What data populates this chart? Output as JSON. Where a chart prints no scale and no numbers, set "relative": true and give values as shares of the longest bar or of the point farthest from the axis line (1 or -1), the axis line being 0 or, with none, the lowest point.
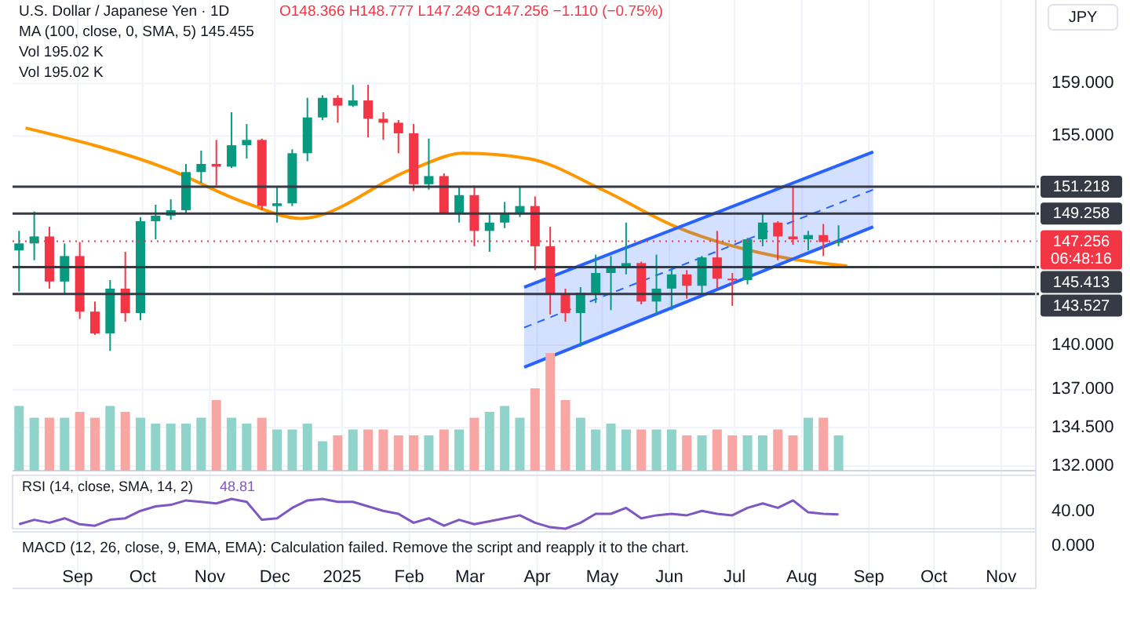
{
  "chart_data": [
    {
      "type": "candlestick",
      "title": "U.S. Dollar / Japanese Yen · 1D",
      "subtitle": "O148.366 H148.777 L147.249 C147.256 −1.110 (−0.75%)",
      "ylabel": "JPY",
      "annotations": [
        "MA (100, close, 0, SMA, 5) 145.455",
        "Vol 195.02 K",
        "Vol 195.02 K"
      ],
      "log": true,
      "grid": true,
      "xlim": [
        "2024-08-02",
        "2025-11-17"
      ],
      "ylim": [
        131.7,
        165.6
      ],
      "xticks": [
        {
          "value": "2024-09-01",
          "label": "Sep"
        },
        {
          "value": "2024-10-01",
          "label": "Oct"
        },
        {
          "value": "2024-11-01",
          "label": "Nov"
        },
        {
          "value": "2024-12-01",
          "label": "Dec"
        },
        {
          "value": "2025-01-01",
          "label": "2025"
        },
        {
          "value": "2025-02-01",
          "label": "Feb"
        },
        {
          "value": "2025-03-01",
          "label": "Mar"
        },
        {
          "value": "2025-04-01",
          "label": "Apr"
        },
        {
          "value": "2025-05-01",
          "label": "May"
        },
        {
          "value": "2025-06-01",
          "label": "Jun"
        },
        {
          "value": "2025-07-01",
          "label": "Jul"
        },
        {
          "value": "2025-08-01",
          "label": "Aug"
        },
        {
          "value": "2025-09-01",
          "label": "Sep"
        },
        {
          "value": "2025-10-01",
          "label": "Oct"
        },
        {
          "value": "2025-11-01",
          "label": "Nov"
        }
      ],
      "yticks": [
        {
          "value": 159,
          "label": "159.000"
        },
        {
          "value": 155,
          "label": "155.000"
        },
        {
          "value": 140,
          "label": "140.000"
        },
        {
          "value": 137,
          "label": "137.000"
        },
        {
          "value": 134.5,
          "label": "134.500"
        },
        {
          "value": 132,
          "label": "132.000"
        }
      ],
      "x": [
        "2024-08-05",
        "2024-08-12",
        "2024-08-19",
        "2024-08-26",
        "2024-09-02",
        "2024-09-09",
        "2024-09-16",
        "2024-09-23",
        "2024-09-30",
        "2024-10-07",
        "2024-10-14",
        "2024-10-21",
        "2024-10-28",
        "2024-11-04",
        "2024-11-11",
        "2024-11-18",
        "2024-11-25",
        "2024-12-02",
        "2024-12-09",
        "2024-12-16",
        "2024-12-23",
        "2024-12-30",
        "2025-01-06",
        "2025-01-13",
        "2025-01-20",
        "2025-01-27",
        "2025-02-03",
        "2025-02-10",
        "2025-02-17",
        "2025-02-24",
        "2025-03-03",
        "2025-03-10",
        "2025-03-17",
        "2025-03-24",
        "2025-03-31",
        "2025-04-07",
        "2025-04-14",
        "2025-04-21",
        "2025-04-28",
        "2025-05-05",
        "2025-05-12",
        "2025-05-19",
        "2025-05-26",
        "2025-06-02",
        "2025-06-09",
        "2025-06-16",
        "2025-06-23",
        "2025-06-30",
        "2025-07-07",
        "2025-07-14",
        "2025-07-21",
        "2025-07-28",
        "2025-08-04",
        "2025-08-11",
        "2025-08-18"
      ],
      "ohlc": [
        [
          146.6,
          148.0,
          143.7,
          147.1
        ],
        [
          147.1,
          149.4,
          145.9,
          147.6
        ],
        [
          147.6,
          148.3,
          143.9,
          144.4
        ],
        [
          144.4,
          147.1,
          143.5,
          146.2
        ],
        [
          146.2,
          147.2,
          141.8,
          142.3
        ],
        [
          142.3,
          143.0,
          140.7,
          140.8
        ],
        [
          140.8,
          144.5,
          139.6,
          143.9
        ],
        [
          143.9,
          146.5,
          141.6,
          142.2
        ],
        [
          142.2,
          149.0,
          141.7,
          148.7
        ],
        [
          148.7,
          149.9,
          147.4,
          149.1
        ],
        [
          149.1,
          150.3,
          148.8,
          149.5
        ],
        [
          149.5,
          152.9,
          149.2,
          152.3
        ],
        [
          152.3,
          153.9,
          151.5,
          152.9
        ],
        [
          152.9,
          154.7,
          151.3,
          152.7
        ],
        [
          152.7,
          156.8,
          152.6,
          154.3
        ],
        [
          154.3,
          155.9,
          153.3,
          154.7
        ],
        [
          154.7,
          154.8,
          149.5,
          149.8
        ],
        [
          149.8,
          151.2,
          148.6,
          150.0
        ],
        [
          150.0,
          154.0,
          149.8,
          153.7
        ],
        [
          153.7,
          157.9,
          153.1,
          156.4
        ],
        [
          156.4,
          158.1,
          156.2,
          157.9
        ],
        [
          157.9,
          158.1,
          156.0,
          157.3
        ],
        [
          157.3,
          158.9,
          157.2,
          157.7
        ],
        [
          157.7,
          158.9,
          154.9,
          156.3
        ],
        [
          156.3,
          156.8,
          154.7,
          156.0
        ],
        [
          156.0,
          156.2,
          153.7,
          155.2
        ],
        [
          155.2,
          155.9,
          150.9,
          151.4
        ],
        [
          151.4,
          154.8,
          151.0,
          152.0
        ],
        [
          152.0,
          152.2,
          149.3,
          149.3
        ],
        [
          149.3,
          151.2,
          148.6,
          150.6
        ],
        [
          150.6,
          151.3,
          146.9,
          148.0
        ],
        [
          148.0,
          149.2,
          146.5,
          148.6
        ],
        [
          148.6,
          150.1,
          148.2,
          149.2
        ],
        [
          149.2,
          151.2,
          149.0,
          149.8
        ],
        [
          149.8,
          150.5,
          145.2,
          146.9
        ],
        [
          146.9,
          148.3,
          142.1,
          143.5
        ],
        [
          143.5,
          143.9,
          141.6,
          142.2
        ],
        [
          142.2,
          144.0,
          139.9,
          143.6
        ],
        [
          143.6,
          146.3,
          142.9,
          145.0
        ],
        [
          145.0,
          146.2,
          142.4,
          145.4
        ],
        [
          145.4,
          148.6,
          144.9,
          145.7
        ],
        [
          145.7,
          145.8,
          142.8,
          143.0
        ],
        [
          143.0,
          146.3,
          142.1,
          143.9
        ],
        [
          143.9,
          145.3,
          142.4,
          144.9
        ],
        [
          144.9,
          145.2,
          143.2,
          144.1
        ],
        [
          144.1,
          146.2,
          143.6,
          146.1
        ],
        [
          146.1,
          148.0,
          143.9,
          144.6
        ],
        [
          144.6,
          145.0,
          142.7,
          144.5
        ],
        [
          144.5,
          147.5,
          144.2,
          147.4
        ],
        [
          147.4,
          149.2,
          146.9,
          148.6
        ],
        [
          148.6,
          148.7,
          145.9,
          147.6
        ],
        [
          147.6,
          151.2,
          147.0,
          147.4
        ],
        [
          147.4,
          148.0,
          146.6,
          147.7
        ],
        [
          147.7,
          148.5,
          146.2,
          147.2
        ],
        [
          147.2,
          148.4,
          146.9,
          147.256
        ]
      ],
      "series": [
        {
          "type": "line",
          "color": "#ff9800",
          "x": [
            "2024-08-08",
            "2024-10-13",
            "2024-11-18",
            "2024-12-13",
            "2025-02-02",
            "2025-02-26",
            "2025-03-28",
            "2025-05-01",
            "2025-06-04",
            "2025-07-27",
            "2025-08-22"
          ],
          "values": [
            155.6,
            152.5,
            150.0,
            148.9,
            152.5,
            153.7,
            153.3,
            151.0,
            148.3,
            146.0,
            145.5
          ]
        },
        {
          "type": "line",
          "color": "#2962ff",
          "x": [
            "2025-03-26",
            "2025-09-03"
          ],
          "values": [
            144.0,
            153.8
          ]
        },
        {
          "type": "line",
          "color": "#2962ff",
          "x": [
            "2025-03-26",
            "2025-09-03"
          ],
          "values": [
            138.5,
            148.3
          ]
        },
        {
          "type": "line",
          "color": "#2962ff",
          "line_style": "dashed",
          "x": [
            "2025-03-26",
            "2025-09-03"
          ],
          "values": [
            141.2,
            151.0
          ],
          "lower": [
            138.5,
            148.3
          ],
          "upper": [
            144.0,
            153.8
          ]
        }
      ],
      "ref_lines": [
        {
          "axis": "y",
          "value": 151.218,
          "label": "151.218",
          "color": "#363a45"
        },
        {
          "axis": "y",
          "value": 149.258,
          "label": "149.258",
          "color": "#363a45"
        },
        {
          "axis": "y",
          "value": 145.413,
          "label": "145.413",
          "color": "#363a45"
        },
        {
          "axis": "y",
          "value": 143.527,
          "label": "143.527",
          "color": "#363a45"
        },
        {
          "axis": "y",
          "value": 147.256,
          "label": "147.256\n06:48:16",
          "color": "#f23645",
          "line_style": "dotted"
        }
      ]
    },
    {
      "type": "bar",
      "relative": true,
      "xlim": [
        "2024-08-02",
        "2025-11-17"
      ],
      "x": [
        "2024-08-05",
        "2024-08-12",
        "2024-08-19",
        "2024-08-26",
        "2024-09-02",
        "2024-09-09",
        "2024-09-16",
        "2024-09-23",
        "2024-09-30",
        "2024-10-07",
        "2024-10-14",
        "2024-10-21",
        "2024-10-28",
        "2024-11-04",
        "2024-11-11",
        "2024-11-18",
        "2024-11-25",
        "2024-12-02",
        "2024-12-09",
        "2024-12-16",
        "2024-12-23",
        "2024-12-30",
        "2025-01-06",
        "2025-01-13",
        "2025-01-20",
        "2025-01-27",
        "2025-02-03",
        "2025-02-10",
        "2025-02-17",
        "2025-02-24",
        "2025-03-03",
        "2025-03-10",
        "2025-03-17",
        "2025-03-24",
        "2025-03-31",
        "2025-04-07",
        "2025-04-14",
        "2025-04-21",
        "2025-04-28",
        "2025-05-05",
        "2025-05-12",
        "2025-05-19",
        "2025-05-26",
        "2025-06-02",
        "2025-06-09",
        "2025-06-16",
        "2025-06-23",
        "2025-06-30",
        "2025-07-07",
        "2025-07-14",
        "2025-07-21",
        "2025-07-28",
        "2025-08-04",
        "2025-08-11",
        "2025-08-18"
      ],
      "values": [
        0.55,
        0.45,
        0.45,
        0.45,
        0.5,
        0.45,
        0.55,
        0.5,
        0.45,
        0.4,
        0.4,
        0.4,
        0.45,
        0.6,
        0.45,
        0.4,
        0.45,
        0.35,
        0.35,
        0.4,
        0.25,
        0.3,
        0.35,
        0.35,
        0.35,
        0.3,
        0.3,
        0.3,
        0.35,
        0.35,
        0.45,
        0.5,
        0.55,
        0.45,
        0.7,
        1.0,
        0.6,
        0.45,
        0.35,
        0.4,
        0.35,
        0.35,
        0.35,
        0.35,
        0.3,
        0.3,
        0.35,
        0.3,
        0.3,
        0.3,
        0.35,
        0.3,
        0.45,
        0.45,
        0.3
      ],
      "colors": [
        "#8fd3cb",
        "#8fd3cb",
        "#f7a6a3",
        "#8fd3cb",
        "#f7a6a3",
        "#f7a6a3",
        "#8fd3cb",
        "#f7a6a3",
        "#8fd3cb",
        "#8fd3cb",
        "#8fd3cb",
        "#8fd3cb",
        "#8fd3cb",
        "#f7a6a3",
        "#8fd3cb",
        "#8fd3cb",
        "#f7a6a3",
        "#8fd3cb",
        "#8fd3cb",
        "#8fd3cb",
        "#8fd3cb",
        "#f7a6a3",
        "#8fd3cb",
        "#f7a6a3",
        "#f7a6a3",
        "#f7a6a3",
        "#f7a6a3",
        "#8fd3cb",
        "#f7a6a3",
        "#8fd3cb",
        "#f7a6a3",
        "#8fd3cb",
        "#8fd3cb",
        "#8fd3cb",
        "#f7a6a3",
        "#f7a6a3",
        "#f7a6a3",
        "#8fd3cb",
        "#8fd3cb",
        "#8fd3cb",
        "#8fd3cb",
        "#f7a6a3",
        "#8fd3cb",
        "#8fd3cb",
        "#f7a6a3",
        "#8fd3cb",
        "#f7a6a3",
        "#f7a6a3",
        "#8fd3cb",
        "#8fd3cb",
        "#f7a6a3",
        "#f7a6a3",
        "#8fd3cb",
        "#f7a6a3",
        "#8fd3cb"
      ]
    },
    {
      "type": "line",
      "relative": true,
      "title": "RSI (14, close, SMA, 14, 2)",
      "annotations": [
        "48.81",
        "40.00"
      ],
      "color": "#7e57c2",
      "xlim": [
        "2024-08-02",
        "2025-11-17"
      ],
      "x": [
        "2024-08-05",
        "2024-08-12",
        "2024-08-19",
        "2024-08-26",
        "2024-09-02",
        "2024-09-09",
        "2024-09-16",
        "2024-09-23",
        "2024-09-30",
        "2024-10-07",
        "2024-10-14",
        "2024-10-21",
        "2024-10-28",
        "2024-11-04",
        "2024-11-11",
        "2024-11-18",
        "2024-11-25",
        "2024-12-02",
        "2024-12-09",
        "2024-12-16",
        "2024-12-23",
        "2024-12-30",
        "2025-01-06",
        "2025-01-13",
        "2025-01-20",
        "2025-01-27",
        "2025-02-03",
        "2025-02-10",
        "2025-02-17",
        "2025-02-24",
        "2025-03-03",
        "2025-03-10",
        "2025-03-17",
        "2025-03-24",
        "2025-03-31",
        "2025-04-07",
        "2025-04-14",
        "2025-04-21",
        "2025-04-28",
        "2025-05-05",
        "2025-05-12",
        "2025-05-19",
        "2025-05-26",
        "2025-06-02",
        "2025-06-09",
        "2025-06-16",
        "2025-06-23",
        "2025-06-30",
        "2025-07-07",
        "2025-07-14",
        "2025-07-21",
        "2025-07-28",
        "2025-08-04",
        "2025-08-11",
        "2025-08-18"
      ],
      "values": [
        0.15,
        0.3,
        0.2,
        0.35,
        0.15,
        0.1,
        0.3,
        0.35,
        0.6,
        0.75,
        0.8,
        0.95,
        0.9,
        0.85,
        1.0,
        0.9,
        0.3,
        0.35,
        0.7,
        0.95,
        1.0,
        0.9,
        0.9,
        0.75,
        0.6,
        0.5,
        0.2,
        0.35,
        0.1,
        0.3,
        0.15,
        0.25,
        0.35,
        0.45,
        0.2,
        0.05,
        0.0,
        0.2,
        0.5,
        0.5,
        0.7,
        0.35,
        0.45,
        0.5,
        0.45,
        0.6,
        0.5,
        0.45,
        0.7,
        0.85,
        0.7,
        0.95,
        0.55,
        0.5,
        0.48
      ]
    },
    {
      "type": "other",
      "title": "MACD (12, 26, close, 9, EMA, EMA): Calculation failed. Remove the script and reapply it to the chart.",
      "annotations": [
        "0.000"
      ]
    }
  ]
}
